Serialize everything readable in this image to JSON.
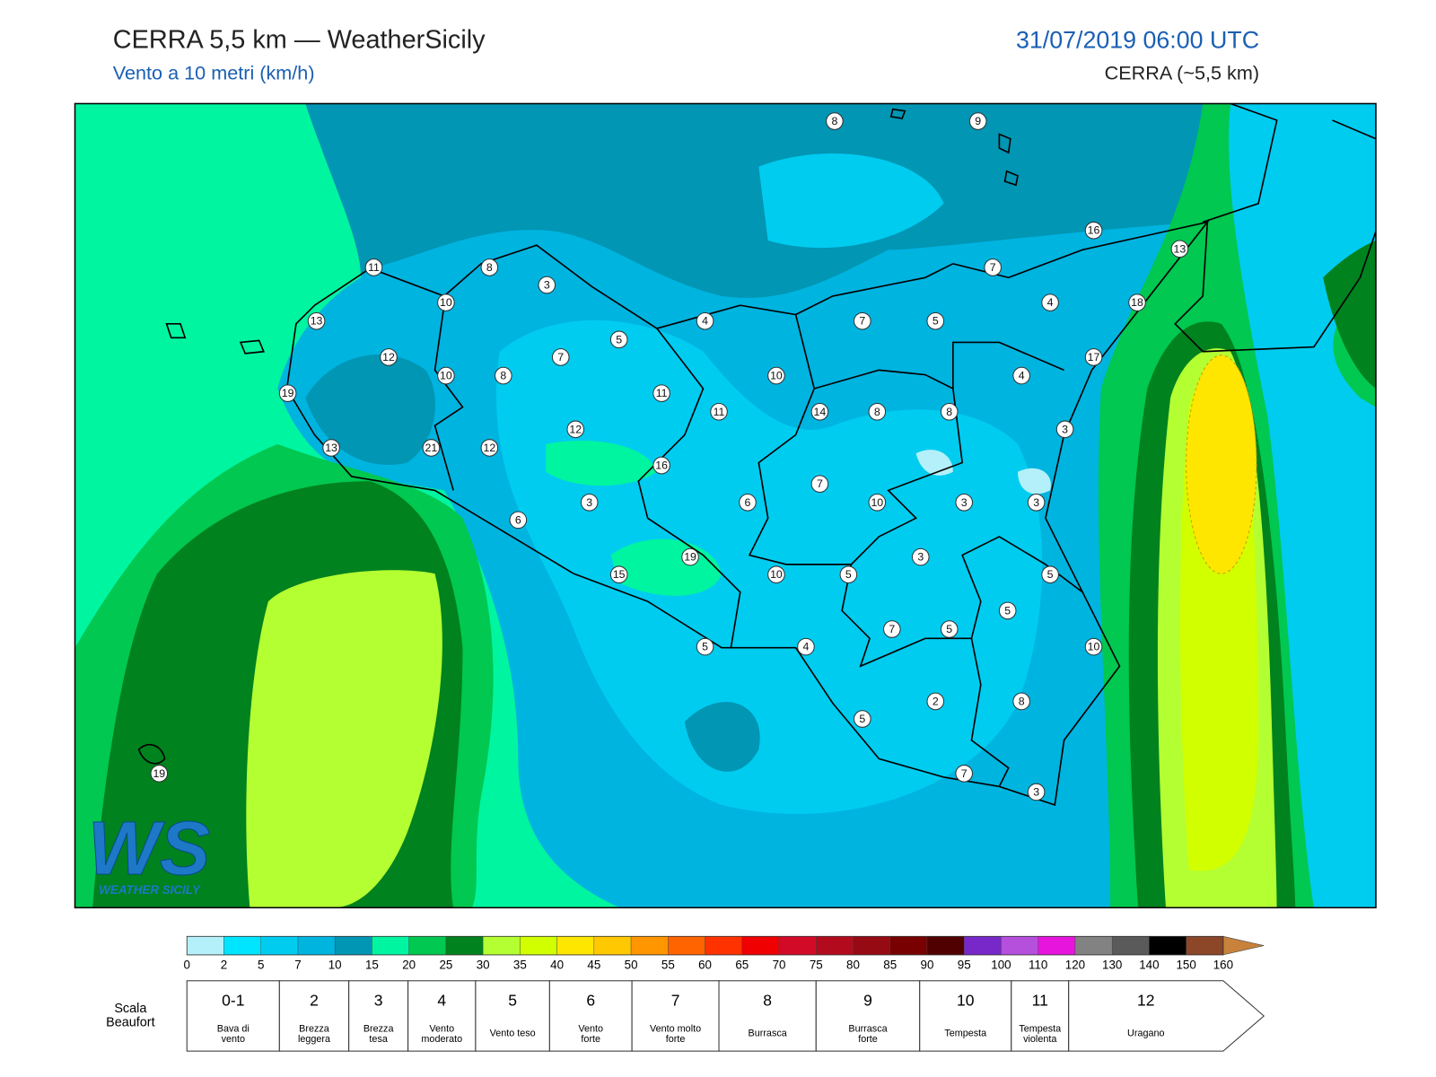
{
  "header": {
    "title": "CERRA 5,5 km — WeatherSicily",
    "subtitle": "Vento a 10 metri (km/h)",
    "datetime": "31/07/2019 06:00 UTC",
    "model": "CERRA (~5,5 km)"
  },
  "stations": [
    8,
    9,
    16,
    13,
    11,
    8,
    3,
    7,
    10,
    13,
    4,
    7,
    5,
    4,
    18,
    5,
    12,
    7,
    17,
    10,
    8,
    10,
    4,
    19,
    11,
    11,
    14,
    8,
    8,
    12,
    3,
    13,
    21,
    12,
    16,
    7,
    3,
    6,
    10,
    3,
    3,
    6,
    19,
    3,
    15,
    10,
    5,
    5,
    5,
    7,
    5,
    5,
    4,
    10,
    2,
    8,
    5,
    19,
    7,
    3
  ],
  "logo": {
    "mark": "WS",
    "text": "WEATHER SICILY"
  },
  "colorbar": {
    "ticks": [
      0,
      2,
      5,
      7,
      10,
      15,
      20,
      25,
      30,
      35,
      40,
      45,
      50,
      55,
      60,
      65,
      70,
      75,
      80,
      85,
      90,
      95,
      100,
      110,
      120,
      130,
      140,
      150,
      160
    ],
    "colors": [
      "#b4f0fa",
      "#00e5ff",
      "#00ccf0",
      "#00b4e0",
      "#0096b4",
      "#00f5a0",
      "#00c850",
      "#00821e",
      "#b4ff32",
      "#d2ff00",
      "#ffe600",
      "#ffc800",
      "#ff9600",
      "#ff6400",
      "#ff3200",
      "#f00000",
      "#d20a28",
      "#b40a1e",
      "#960a14",
      "#780000",
      "#500000",
      "#7828c8",
      "#b450dc",
      "#e614dc",
      "#828282",
      "#5a5a5a",
      "#000000",
      "#8c4628"
    ],
    "extend_color": "#c8823c"
  },
  "beaufort": {
    "label": [
      "Scala",
      "Beaufort"
    ],
    "forces": [
      {
        "force": "0-1",
        "desc": [
          "Bava di",
          "vento"
        ]
      },
      {
        "force": 2,
        "desc": [
          "Brezza",
          "leggera"
        ]
      },
      {
        "force": 3,
        "desc": [
          "Brezza",
          "tesa"
        ]
      },
      {
        "force": 4,
        "desc": [
          "Vento",
          "moderato"
        ]
      },
      {
        "force": 5,
        "desc": [
          "Vento teso"
        ]
      },
      {
        "force": 6,
        "desc": [
          "Vento",
          "forte"
        ]
      },
      {
        "force": 7,
        "desc": [
          "Vento molto",
          "forte"
        ]
      },
      {
        "force": 8,
        "desc": [
          "Burrasca"
        ]
      },
      {
        "force": 9,
        "desc": [
          "Burrasca",
          "forte"
        ]
      },
      {
        "force": 10,
        "desc": [
          "Tempesta"
        ]
      },
      {
        "force": 11,
        "desc": [
          "Tempesta",
          "violenta"
        ]
      },
      {
        "force": 12,
        "desc": [
          "Uragano"
        ]
      }
    ]
  }
}
